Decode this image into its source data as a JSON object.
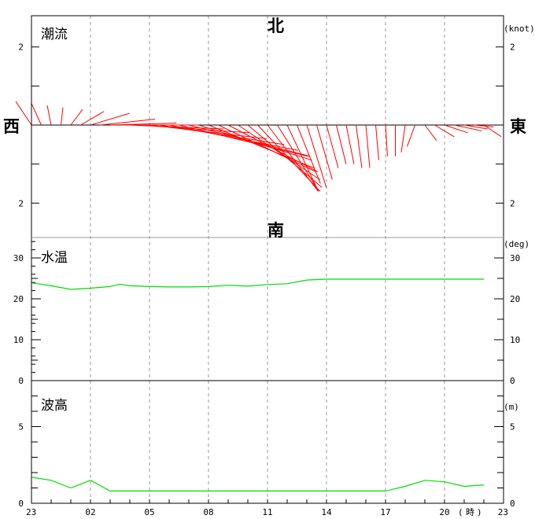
{
  "chart_data": {
    "type": "line",
    "x_axis": {
      "tick_labels": [
        "23",
        "02",
        "05",
        "08",
        "11",
        "14",
        "17",
        "20",
        "23"
      ],
      "unit_label": "時"
    },
    "current": {
      "title": "潮流",
      "unit": "(knot)",
      "directions": {
        "north": "北",
        "south": "南",
        "east": "東",
        "west": "西"
      },
      "ylim": [
        -2.8,
        2.8
      ],
      "ticks": [
        2,
        2
      ],
      "vector_color": "#ff0000",
      "hours": [
        0,
        0.5,
        1,
        1.5,
        2,
        2.5,
        3,
        3.5,
        4,
        4.5,
        5,
        5.5,
        6,
        6.5,
        7,
        7.5,
        8,
        8.5,
        9,
        9.5,
        10,
        10.5,
        11,
        11.5,
        12,
        12.5,
        13,
        13.5,
        14,
        14.5,
        15,
        15.5,
        16,
        16.5,
        17,
        17.5,
        18,
        18.5,
        19,
        19.5,
        20,
        20.5,
        21,
        21.5,
        22,
        22.5,
        23
      ],
      "east": [
        -0.4,
        -0.25,
        -0.1,
        0.05,
        0.3,
        0.6,
        1.0,
        1.4,
        1.7,
        2.0,
        2.4,
        2.8,
        3.0,
        3.2,
        3.3,
        3.3,
        3.1,
        2.9,
        2.7,
        2.5,
        2.3,
        2.1,
        1.9,
        1.6,
        1.3,
        1.0,
        0.8,
        0.6,
        0.5,
        0.4,
        0.3,
        0.25,
        0.2,
        0.15,
        0.1,
        0.08,
        0.05,
        0.0,
        -0.1,
        -0.2,
        0.3,
        0.5,
        0.6,
        0.7,
        0.6,
        0.5,
        0.45
      ],
      "north": [
        0.6,
        0.55,
        0.5,
        0.45,
        0.4,
        0.35,
        0.3,
        0.15,
        0.05,
        0.0,
        -0.1,
        -0.2,
        -0.35,
        -0.5,
        -0.65,
        -0.8,
        -0.8,
        -0.9,
        -1.1,
        -1.2,
        -1.2,
        -1.4,
        -1.6,
        -1.7,
        -1.7,
        -1.6,
        -1.7,
        -1.5,
        -1.6,
        -1.4,
        -1.1,
        -1.0,
        -1.0,
        -1.1,
        -1.1,
        -0.9,
        -0.8,
        -0.8,
        -0.7,
        -0.55,
        -0.4,
        -0.3,
        -0.2,
        -0.15,
        -0.1,
        -0.05,
        -0.3
      ]
    },
    "water_temp": {
      "title": "水温",
      "unit": "(deg)",
      "ylim": [
        0,
        35
      ],
      "ticks": [
        0,
        10,
        20,
        30
      ],
      "line_color": "#00dd00",
      "hours": [
        0,
        1,
        2,
        3,
        4,
        4.5,
        5,
        6,
        7,
        8,
        9,
        10,
        11,
        12,
        13,
        14,
        15,
        16,
        17,
        18,
        19,
        20,
        21,
        22,
        23
      ],
      "values": [
        23.9,
        23.2,
        22.3,
        22.6,
        23.0,
        23.6,
        23.2,
        23.0,
        22.9,
        22.9,
        23.0,
        23.3,
        23.1,
        23.5,
        23.7,
        24.6,
        24.8,
        24.8,
        24.8,
        24.8,
        24.8,
        24.8,
        24.8,
        24.8,
        24.8
      ]
    },
    "wave_height": {
      "title": "波高",
      "unit": "(m)",
      "ylim": [
        0,
        8
      ],
      "ticks": [
        0,
        5
      ],
      "line_color": "#00dd00",
      "hours": [
        0,
        1,
        2,
        3,
        4,
        5,
        6,
        7,
        8,
        9,
        10,
        11,
        12,
        13,
        14,
        15,
        16,
        17,
        18,
        19,
        20,
        21,
        22,
        23
      ],
      "values": [
        1.7,
        1.5,
        1.0,
        1.5,
        0.8,
        0.8,
        0.8,
        0.8,
        0.8,
        0.8,
        0.8,
        0.8,
        0.8,
        0.8,
        0.8,
        0.8,
        0.8,
        0.8,
        0.8,
        1.1,
        1.5,
        1.4,
        1.1,
        1.2
      ]
    }
  }
}
